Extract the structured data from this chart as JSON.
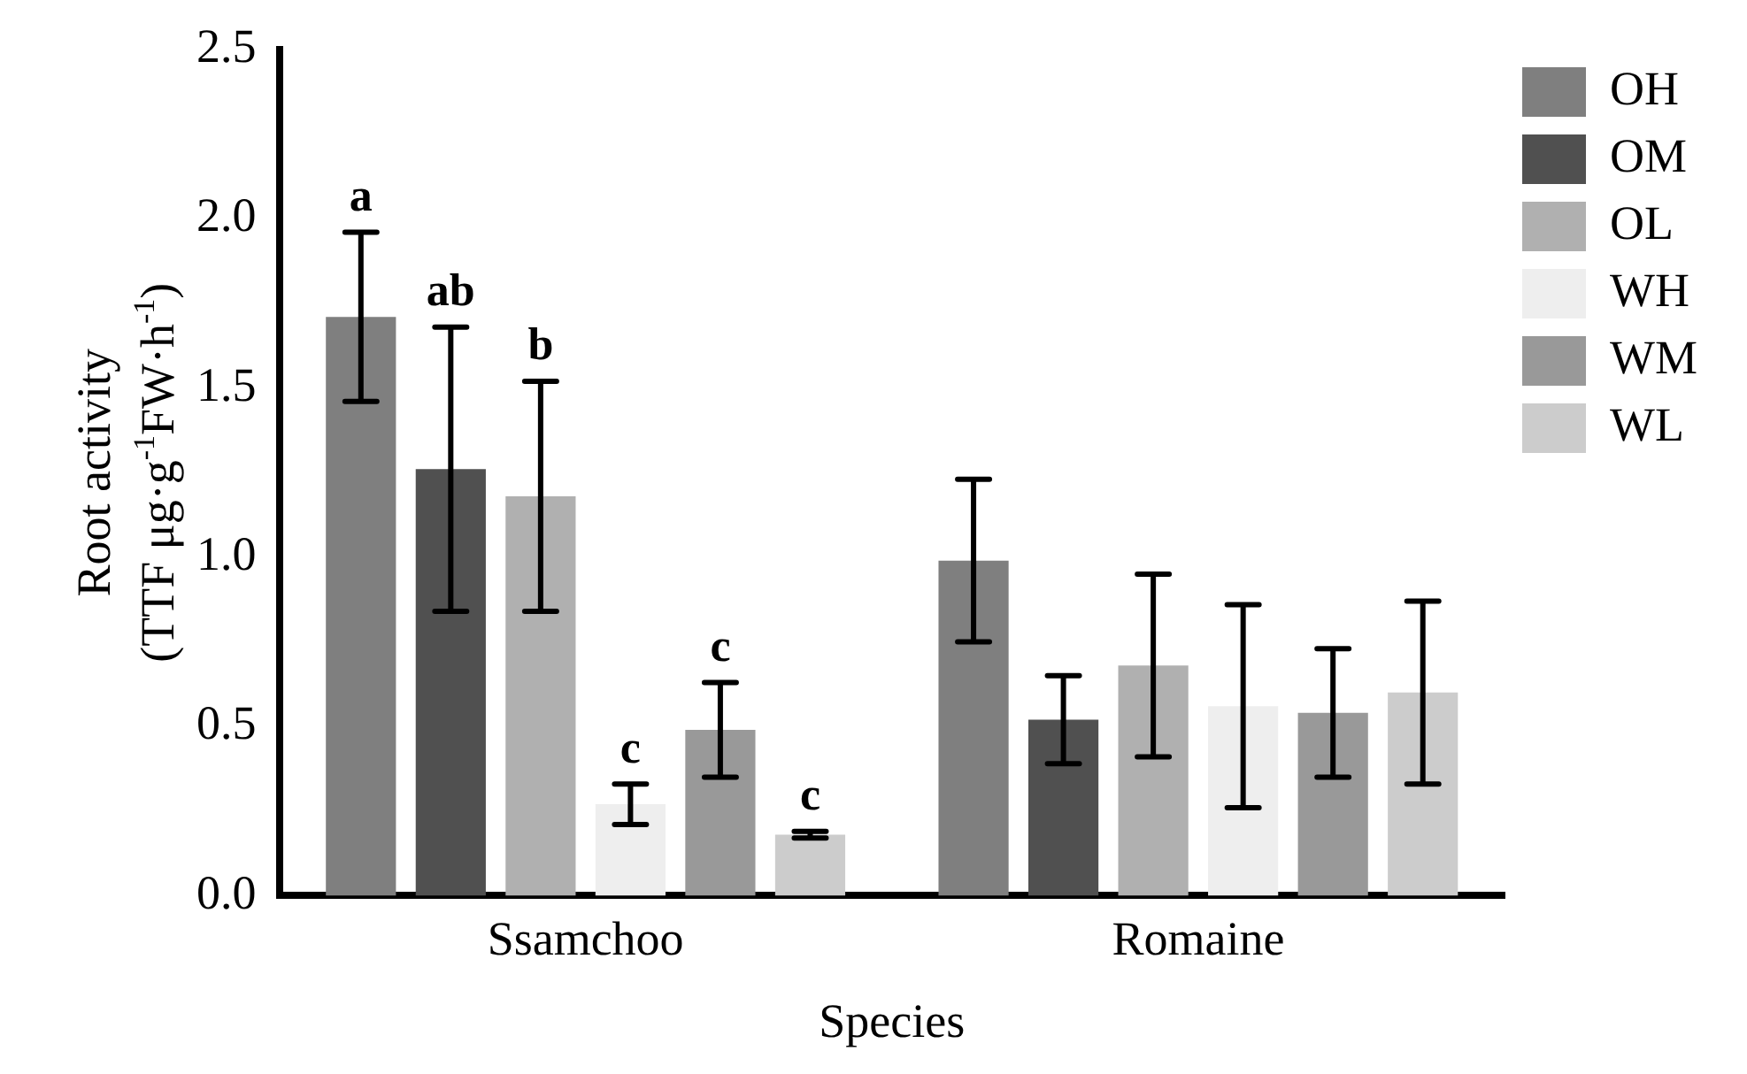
{
  "chart_data": {
    "type": "bar",
    "xlabel": "Species",
    "ylabel": "Root activity\n(TTF μg·g$^{-1}$FW·h$^{-1}$)",
    "categories": [
      "Ssamchoo",
      "Romaine"
    ],
    "series": [
      {
        "name": "OH",
        "color": "#7f7f7f",
        "values": [
          1.71,
          0.99
        ],
        "errors": [
          0.25,
          0.24
        ]
      },
      {
        "name": "OM",
        "color": "#505050",
        "values": [
          1.26,
          0.52
        ],
        "errors": [
          0.42,
          0.13
        ]
      },
      {
        "name": "OL",
        "color": "#b0b0b0",
        "values": [
          1.18,
          0.68
        ],
        "errors": [
          0.34,
          0.27
        ]
      },
      {
        "name": "WH",
        "color": "#eeeeee",
        "values": [
          0.27,
          0.56
        ],
        "errors": [
          0.06,
          0.3
        ]
      },
      {
        "name": "WM",
        "color": "#999999",
        "values": [
          0.49,
          0.54
        ],
        "errors": [
          0.14,
          0.19
        ]
      },
      {
        "name": "WL",
        "color": "#cccccc",
        "values": [
          0.18,
          0.6
        ],
        "errors": [
          0.01,
          0.27
        ]
      }
    ],
    "annotations": [
      "a",
      "ab",
      "b",
      "c",
      "c",
      "c"
    ],
    "ylim": [
      0,
      2.5
    ],
    "yticks": [
      {
        "value": 0,
        "label": "0.0"
      },
      {
        "value": 0.5,
        "label": "0.5"
      },
      {
        "value": 1,
        "label": "1.0"
      },
      {
        "value": 1.5,
        "label": "1.5"
      },
      {
        "value": 2,
        "label": "2.0"
      },
      {
        "value": 2.5,
        "label": "2.5"
      }
    ],
    "grid": false,
    "legend": "top right"
  }
}
